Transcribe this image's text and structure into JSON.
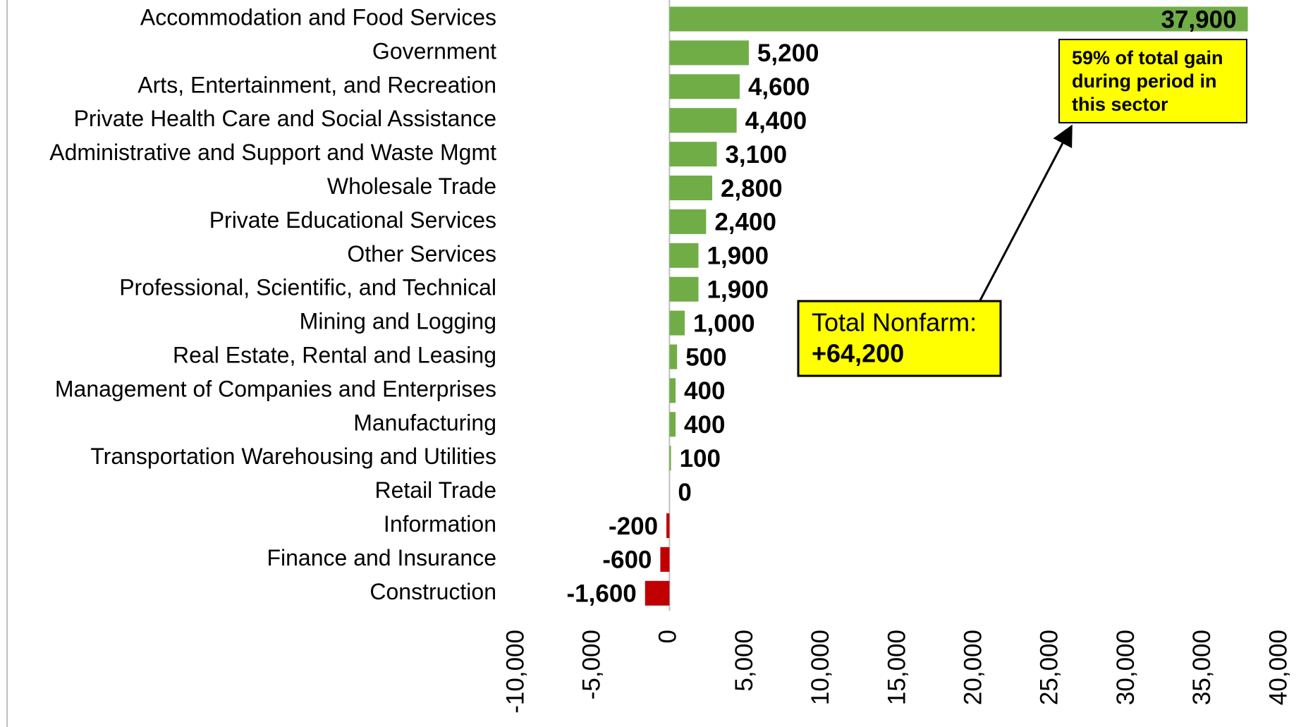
{
  "chart_data": {
    "type": "bar",
    "orientation": "horizontal",
    "categories": [
      "Accommodation and Food Services",
      "Government",
      "Arts, Entertainment, and Recreation",
      "Private Health Care and Social Assistance",
      "Administrative and Support and Waste Mgmt",
      "Wholesale Trade",
      "Private Educational Services",
      "Other Services",
      "Professional, Scientific, and Technical",
      "Mining and Logging",
      "Real Estate, Rental and Leasing",
      "Management of Companies and Enterprises",
      "Manufacturing",
      "Transportation Warehousing and Utilities",
      "Retail Trade",
      "Information",
      "Finance and Insurance",
      "Construction"
    ],
    "values": [
      37900,
      5200,
      4600,
      4400,
      3100,
      2800,
      2400,
      1900,
      1900,
      1000,
      500,
      400,
      400,
      100,
      0,
      -200,
      -600,
      -1600
    ],
    "value_labels": [
      "37,900",
      "5,200",
      "4,600",
      "4,400",
      "3,100",
      "2,800",
      "2,400",
      "1,900",
      "1,900",
      "1,000",
      "500",
      "400",
      "400",
      "100",
      "0",
      "-200",
      "-600",
      "-1,600"
    ],
    "positive_color": "#70ad47",
    "negative_color": "#c00000",
    "xlim": [
      -10000,
      40000
    ],
    "xticks": [
      {
        "value": -10000,
        "label": "-10,000"
      },
      {
        "value": -5000,
        "label": "-5,000"
      },
      0,
      {
        "value": 5000,
        "label": "5,000"
      },
      {
        "value": 10000,
        "label": "10,000"
      },
      {
        "value": 15000,
        "label": "15,000"
      },
      {
        "value": 20000,
        "label": "20,000"
      },
      {
        "value": 25000,
        "label": "25,000"
      },
      {
        "value": 30000,
        "label": "30,000"
      },
      {
        "value": 35000,
        "label": "35,000"
      },
      {
        "value": 40000,
        "label": "40,000"
      }
    ],
    "annotations": [
      {
        "lines": [
          "59% of total gain",
          "during period in",
          "this sector"
        ]
      },
      {
        "lines": [
          "Total Nonfarm:",
          "+64,200"
        ]
      }
    ]
  }
}
